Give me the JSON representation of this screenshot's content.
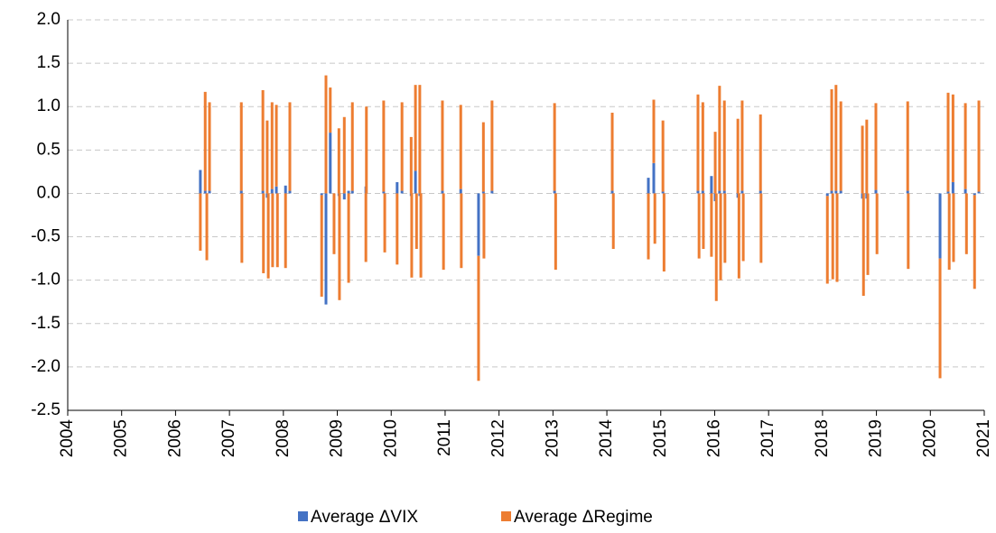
{
  "chart_data": {
    "type": "stacked_bar",
    "x": [
      2006.46,
      2006.55,
      2006.58,
      2006.63,
      2007.22,
      2007.23,
      2007.62,
      2007.63,
      2007.7,
      2007.72,
      2007.79,
      2007.8,
      2007.87,
      2007.89,
      2008.04,
      2008.12,
      2008.71,
      2008.79,
      2008.87,
      2008.94,
      2009.03,
      2009.04,
      2009.13,
      2009.21,
      2009.28,
      2009.53,
      2009.54,
      2009.86,
      2009.88,
      2010.11,
      2010.2,
      2010.37,
      2010.38,
      2010.45,
      2010.47,
      2010.53,
      2010.55,
      2010.95,
      2010.97,
      2011.29,
      2011.3,
      2011.62,
      2011.71,
      2011.72,
      2011.87,
      2013.03,
      2013.05,
      2014.1,
      2014.12,
      2014.77,
      2014.87,
      2014.89,
      2015.04,
      2015.06,
      2015.69,
      2015.71,
      2015.78,
      2015.79,
      2015.94,
      2016.01,
      2016.03,
      2016.09,
      2016.11,
      2016.18,
      2016.19,
      2016.43,
      2016.45,
      2016.51,
      2016.53,
      2016.85,
      2016.86,
      2018.09,
      2018.17,
      2018.19,
      2018.25,
      2018.27,
      2018.34,
      2018.74,
      2018.76,
      2018.82,
      2018.84,
      2018.99,
      2019.01,
      2019.58,
      2019.59,
      2020.18,
      2020.33,
      2020.35,
      2020.42,
      2020.43,
      2020.65,
      2020.67,
      2020.82,
      2020.9
    ],
    "series": [
      {
        "name": "Average ΔVIX",
        "color": "#4472c4",
        "values": [
          0.27,
          0.03,
          null,
          0.03,
          0.03,
          null,
          0.03,
          null,
          -0.05,
          null,
          0.05,
          null,
          0.08,
          null,
          0.09,
          0.03,
          -0.02,
          -1.28,
          0.7,
          null,
          -0.03,
          null,
          -0.07,
          0.03,
          0.03,
          0.08,
          null,
          0.02,
          null,
          0.13,
          0.03,
          -0.03,
          null,
          0.26,
          null,
          -0.03,
          null,
          0.03,
          null,
          0.05,
          null,
          -0.72,
          0.02,
          null,
          0.03,
          0.03,
          null,
          0.03,
          null,
          0.18,
          0.35,
          null,
          0.02,
          null,
          0.03,
          null,
          0.03,
          null,
          0.2,
          -0.09,
          null,
          0.03,
          null,
          0.03,
          null,
          -0.05,
          null,
          0.03,
          null,
          0.03,
          null,
          -0.03,
          0.03,
          null,
          0.03,
          null,
          0.03,
          -0.06,
          null,
          -0.06,
          null,
          0.04,
          null,
          0.03,
          null,
          -0.75,
          0.02,
          null,
          0.13,
          null,
          0.05,
          null,
          -0.02,
          0.02
        ]
      },
      {
        "name": "Average ΔRegime",
        "color": "#ed7d31",
        "values": [
          -0.66,
          1.14,
          -0.77,
          1.02,
          1.02,
          -0.8,
          1.16,
          -0.92,
          0.84,
          -0.98,
          1.0,
          -0.85,
          0.94,
          -0.85,
          -0.86,
          1.02,
          -1.17,
          1.36,
          0.52,
          -0.7,
          0.75,
          -1.23,
          0.88,
          -1.03,
          1.02,
          -0.79,
          1.0,
          1.05,
          -0.68,
          -0.82,
          1.02,
          0.65,
          -0.97,
          0.99,
          -0.64,
          1.25,
          -0.97,
          1.04,
          -0.88,
          0.97,
          -0.86,
          -1.44,
          0.8,
          -0.75,
          1.04,
          1.01,
          -0.88,
          0.9,
          -0.64,
          -0.76,
          0.73,
          -0.58,
          0.82,
          -0.9,
          1.11,
          -0.75,
          1.02,
          -0.64,
          -0.73,
          0.71,
          -1.24,
          1.21,
          -1.0,
          1.04,
          -0.8,
          0.86,
          -0.98,
          1.04,
          -0.78,
          0.88,
          -0.8,
          -1.01,
          1.17,
          -0.99,
          1.22,
          -1.02,
          1.03,
          0.78,
          -1.18,
          0.85,
          -0.94,
          1.0,
          -0.7,
          1.03,
          -0.87,
          -1.38,
          1.14,
          -0.88,
          1.01,
          -0.79,
          0.99,
          -0.7,
          -1.08,
          1.05
        ]
      }
    ],
    "xlim": [
      2004,
      2021
    ],
    "xticks": [
      2004,
      2005,
      2006,
      2007,
      2008,
      2009,
      2010,
      2011,
      2012,
      2013,
      2014,
      2015,
      2016,
      2017,
      2018,
      2019,
      2020,
      2021
    ],
    "ylim": [
      -2.5,
      2
    ],
    "yticks": [
      -2.5,
      {
        "value": -2,
        "label": "-2.0"
      },
      -1.5,
      {
        "value": -1,
        "label": "-1.0"
      },
      -0.5,
      {
        "value": 0,
        "label": "0.0"
      },
      0.5,
      {
        "value": 1,
        "label": "1.0"
      },
      1.5,
      {
        "value": 2,
        "label": "2.0"
      }
    ],
    "grid": true,
    "legend": "bottom"
  }
}
